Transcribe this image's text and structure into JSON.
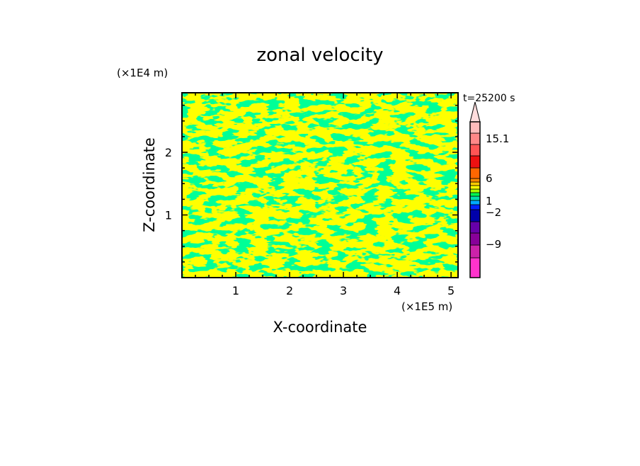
{
  "chart_data": {
    "type": "heatmap",
    "title": "zonal velocity",
    "xlabel": "X-coordinate",
    "ylabel": "Z-coordinate",
    "x_unit": "(×1E5 m)",
    "y_unit": "(×1E4 m)",
    "time_label": "t=25200 s",
    "xlim": [
      0,
      5.13
    ],
    "ylim": [
      0,
      2.95
    ],
    "x_ticks": [
      1,
      2,
      3,
      4,
      5
    ],
    "y_ticks": [
      1,
      2
    ],
    "grid": false,
    "dominant_colors": [
      "#ffff00",
      "#00ff50"
    ],
    "colorbar": {
      "labels": [
        "15.1",
        "6",
        "1",
        "−2",
        "−9"
      ],
      "levels": [
        {
          "color": "#ff33cc"
        },
        {
          "color": "#cc22aa"
        },
        {
          "color": "#880099"
        },
        {
          "color": "#6600aa"
        },
        {
          "color": "#0000aa"
        },
        {
          "color": "#0022ff"
        },
        {
          "color": "#00aaff"
        },
        {
          "color": "#00ddaa"
        },
        {
          "color": "#00ff50"
        },
        {
          "color": "#aaff00"
        },
        {
          "color": "#ffff00"
        },
        {
          "color": "#ffcc00"
        },
        {
          "color": "#ff8800"
        },
        {
          "color": "#ff6600"
        },
        {
          "color": "#ee1111"
        },
        {
          "color": "#ff5555"
        },
        {
          "color": "#ff8888"
        },
        {
          "color": "#ffbbbb"
        },
        {
          "color": "#ffdddd"
        }
      ]
    }
  }
}
